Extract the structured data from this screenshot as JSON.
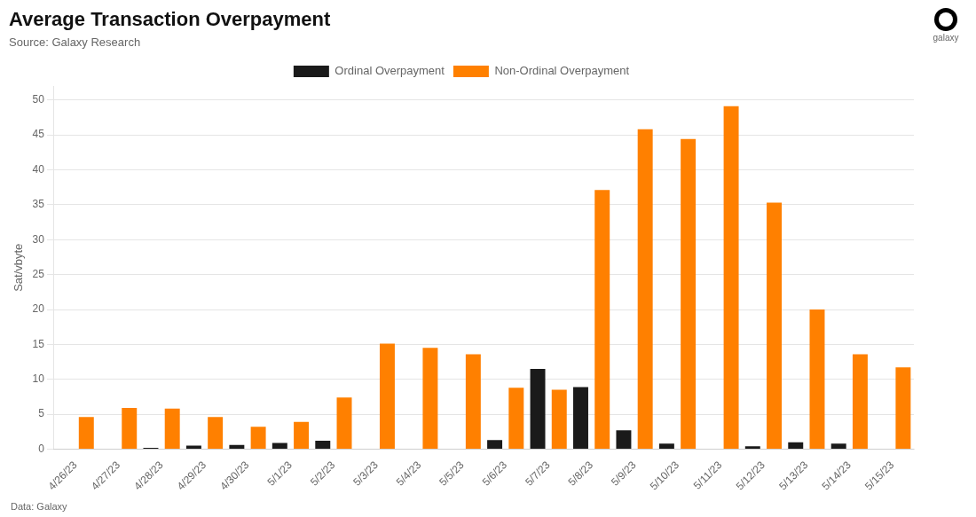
{
  "chart_data": {
    "type": "bar",
    "title": "Average Transaction Overpayment",
    "subtitle": "Source: Galaxy Research",
    "annotations": [
      "Data: Galaxy",
      "galaxy"
    ],
    "y_label": "Sat/vbyte",
    "categories": [
      "4/26/23",
      "4/27/23",
      "4/28/23",
      "4/29/23",
      "4/30/23",
      "5/1/23",
      "5/2/23",
      "5/3/23",
      "5/4/23",
      "5/5/23",
      "5/6/23",
      "5/7/23",
      "5/8/23",
      "5/9/23",
      "5/10/23",
      "5/11/23",
      "5/12/23",
      "5/13/23",
      "5/14/23",
      "5/15/23"
    ],
    "series": [
      {
        "name": "Ordinal Overpayment",
        "color": "#1a1a1a",
        "values": [
          0.0,
          0.0,
          0.2,
          0.5,
          0.6,
          0.9,
          1.2,
          0.0,
          0.0,
          0.0,
          1.3,
          11.5,
          8.9,
          2.7,
          0.8,
          0.0,
          0.4,
          1.0,
          0.8,
          0.0
        ]
      },
      {
        "name": "Non-Ordinal Overpayment",
        "color": "#FF8000",
        "values": [
          4.6,
          5.9,
          5.8,
          4.6,
          3.2,
          3.9,
          7.4,
          15.1,
          14.5,
          13.6,
          8.8,
          8.5,
          37.1,
          45.8,
          44.4,
          49.1,
          35.3,
          20.0,
          13.6,
          11.7
        ]
      }
    ],
    "ylim": [
      0,
      52
    ],
    "yticks": [
      0,
      5,
      10,
      15,
      20,
      25,
      30,
      35,
      40,
      45,
      50
    ],
    "grid": true,
    "legend": "top"
  }
}
